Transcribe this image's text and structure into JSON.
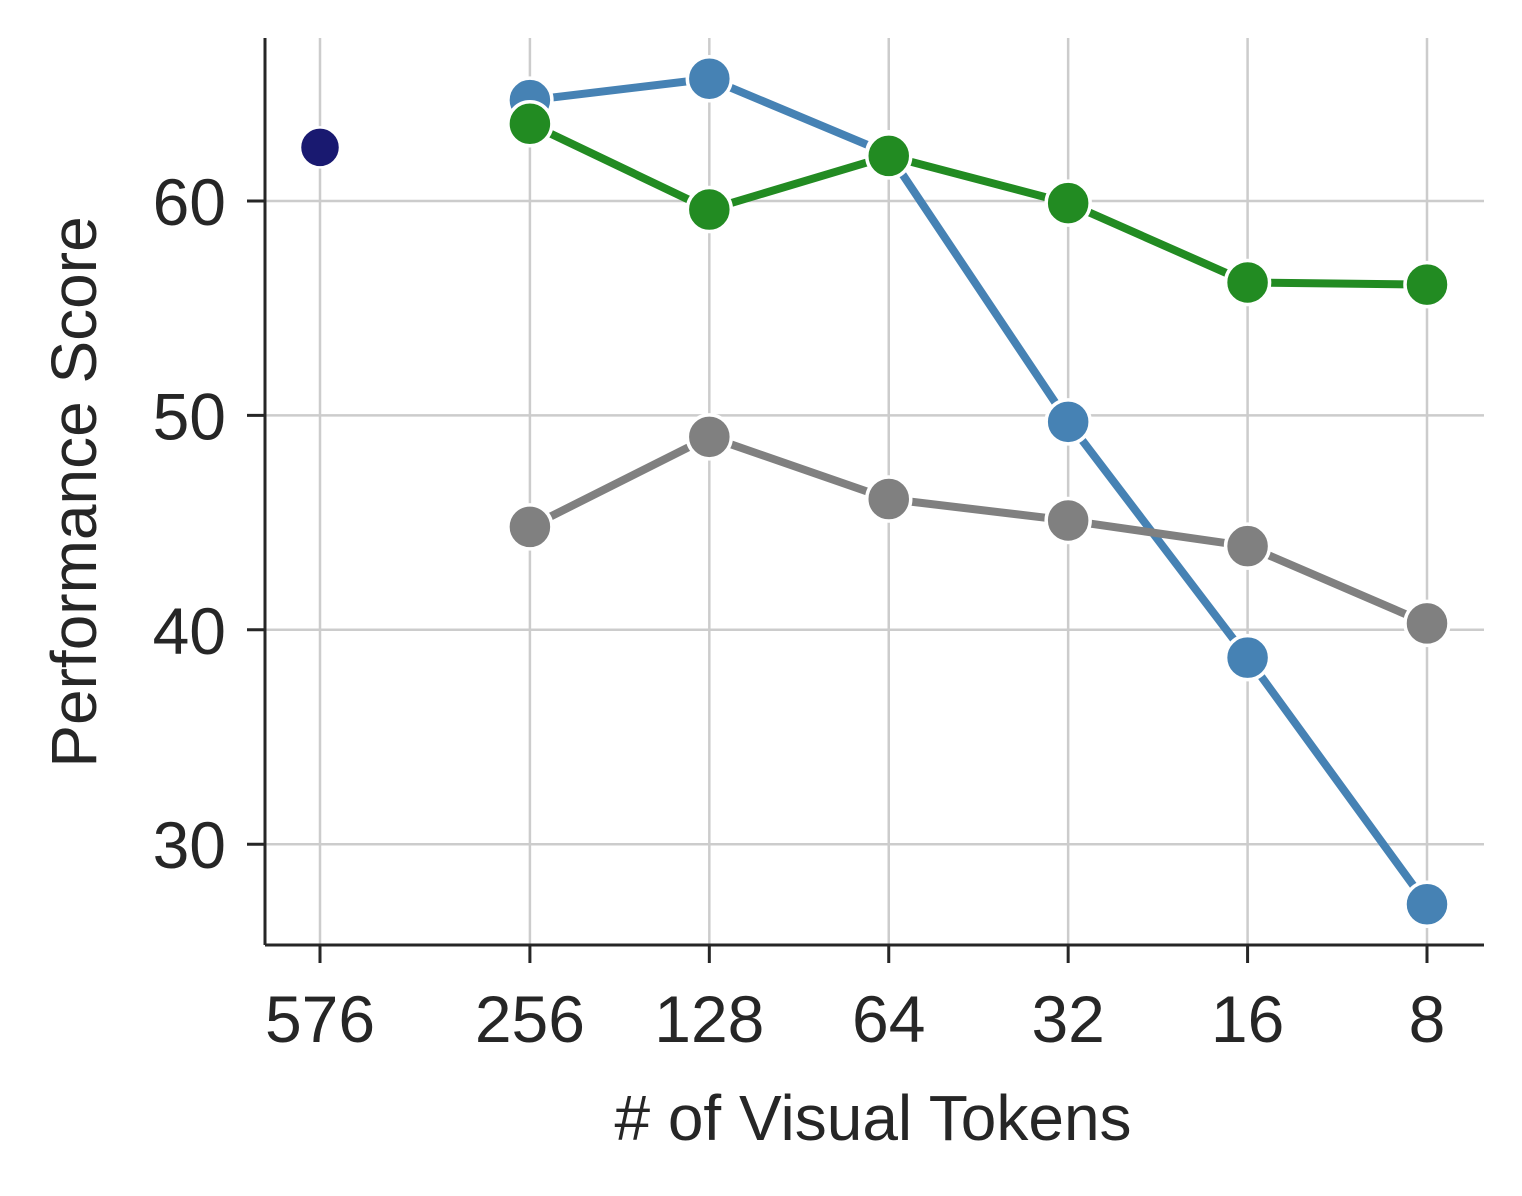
{
  "chart_data": {
    "type": "line",
    "title": "",
    "xlabel": "# of Visual Tokens",
    "ylabel": "Performance Score",
    "x_categories": [
      "576",
      "256",
      "128",
      "64",
      "32",
      "16",
      "8"
    ],
    "x_scale": "log2-reversed",
    "y_ticks": [
      30,
      40,
      50,
      60
    ],
    "ylim": [
      25.3,
      67.6
    ],
    "grid": true,
    "legend": "none",
    "series": [
      {
        "color": "#4682b4",
        "x": [
          "256",
          "128",
          "64",
          "32",
          "16",
          "8"
        ],
        "values": [
          64.7,
          65.7,
          62.2,
          49.7,
          38.7,
          27.2
        ]
      },
      {
        "color": "#228b22",
        "x": [
          "256",
          "128",
          "64",
          "32",
          "16",
          "8"
        ],
        "values": [
          63.6,
          59.6,
          62.1,
          59.9,
          56.2,
          56.1
        ]
      },
      {
        "color": "#808080",
        "x": [
          "256",
          "128",
          "64",
          "32",
          "16",
          "8"
        ],
        "values": [
          44.8,
          49.0,
          46.1,
          45.1,
          43.9,
          40.3
        ]
      },
      {
        "color": "#191970",
        "x": [
          "576"
        ],
        "values": [
          62.5
        ]
      }
    ]
  }
}
